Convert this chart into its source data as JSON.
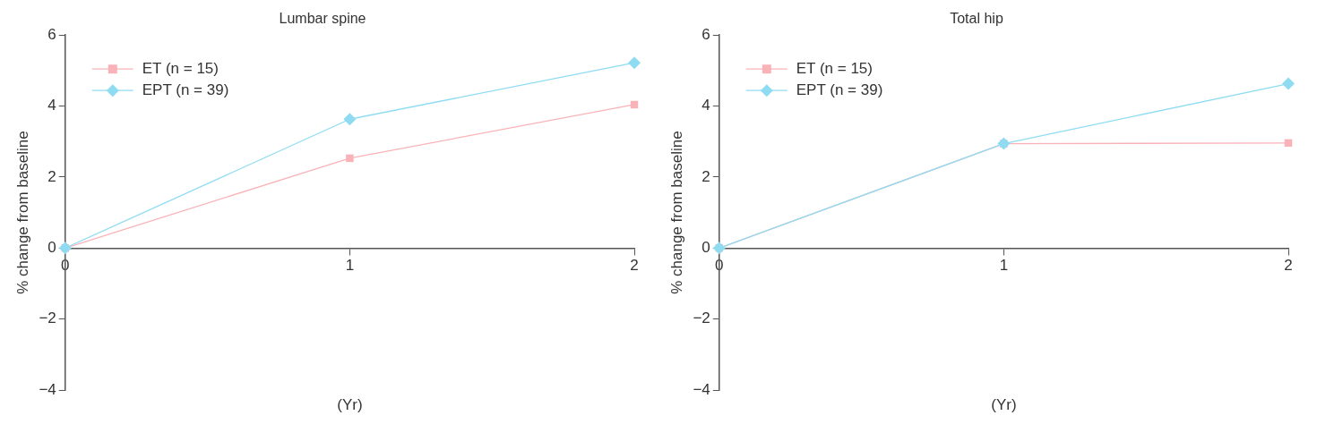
{
  "chart_data": [
    {
      "type": "line",
      "title": "Lumbar spine",
      "xlabel": "(Yr)",
      "ylabel": "% change from baseline",
      "x": [
        0,
        1,
        2
      ],
      "xlim": [
        0,
        2
      ],
      "xticks": [
        0,
        1,
        2
      ],
      "ylim": [
        -4,
        6
      ],
      "yticks": [
        -4,
        -2,
        0,
        2,
        4,
        6
      ],
      "grid": false,
      "legend": "top left",
      "series": [
        {
          "name": "ET (n = 15)",
          "color": "#f9b3b8",
          "marker": "square",
          "values": [
            0,
            2.53,
            4.04
          ]
        },
        {
          "name": "EPT (n = 39)",
          "color": "#8fdcf2",
          "marker": "diamond",
          "values": [
            0,
            3.63,
            5.22
          ]
        }
      ]
    },
    {
      "type": "line",
      "title": "Total hip",
      "xlabel": "(Yr)",
      "ylabel": "% change from baseline",
      "x": [
        0,
        1,
        2
      ],
      "xlim": [
        0,
        2
      ],
      "xticks": [
        0,
        1,
        2
      ],
      "ylim": [
        -4,
        6
      ],
      "yticks": [
        -4,
        -2,
        0,
        2,
        4,
        6
      ],
      "grid": false,
      "legend": "top left",
      "series": [
        {
          "name": "ET (n = 15)",
          "color": "#f9b3b8",
          "marker": "square",
          "values": [
            0,
            2.94,
            2.96
          ]
        },
        {
          "name": "EPT (n = 39)",
          "color": "#8fdcf2",
          "marker": "diamond",
          "values": [
            0,
            2.94,
            4.63
          ]
        }
      ]
    }
  ]
}
